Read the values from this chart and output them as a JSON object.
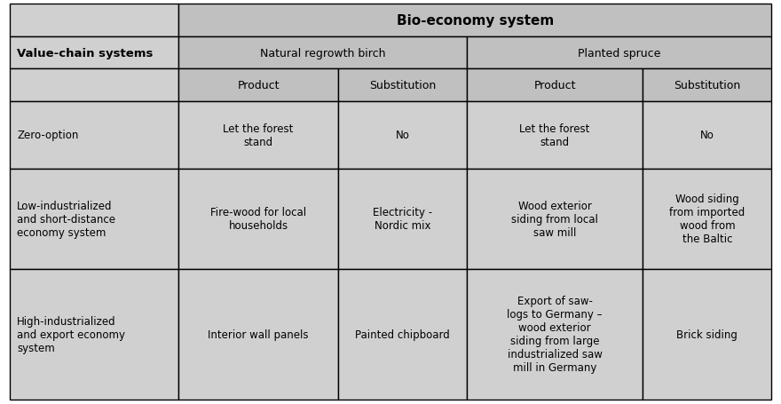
{
  "fig_width": 8.8,
  "fig_height": 4.56,
  "dpi": 100,
  "background_color": "#ffffff",
  "header_bg": "#a8a8a8",
  "subheader_bg": "#c0c0c0",
  "cell_bg": "#d0d0d0",
  "border_color": "#000000",
  "header": "Bio-economy system",
  "col0_header": "Value-chain systems",
  "subheaders": [
    "Natural regrowth birch",
    "Planted spruce"
  ],
  "col_headers": [
    "Product",
    "Substitution",
    "Product",
    "Substitution"
  ],
  "rows": [
    {
      "label": "Zero-option",
      "cells": [
        "Let the forest\nstand",
        "No",
        "Let the forest\nstand",
        "No"
      ]
    },
    {
      "label": "Low-industrialized\nand short-distance\neconomy system",
      "cells": [
        "Fire-wood for local\nhouseholds",
        "Electricity -\nNordic mix",
        "Wood exterior\nsiding from local\nsaw mill",
        "Wood siding\nfrom imported\nwood from\nthe Baltic"
      ]
    },
    {
      "label": "High-industrialized\nand export economy\nsystem",
      "cells": [
        "Interior wall panels",
        "Painted chipboard",
        "Export of saw-\nlogs to Germany –\nwood exterior\nsiding from large\nindustrialized saw\nmill in Germany",
        "Brick siding"
      ]
    }
  ],
  "col_props": [
    0.2,
    0.188,
    0.152,
    0.208,
    0.152
  ],
  "row_props": [
    0.082,
    0.082,
    0.082,
    0.17,
    0.255,
    0.329
  ]
}
